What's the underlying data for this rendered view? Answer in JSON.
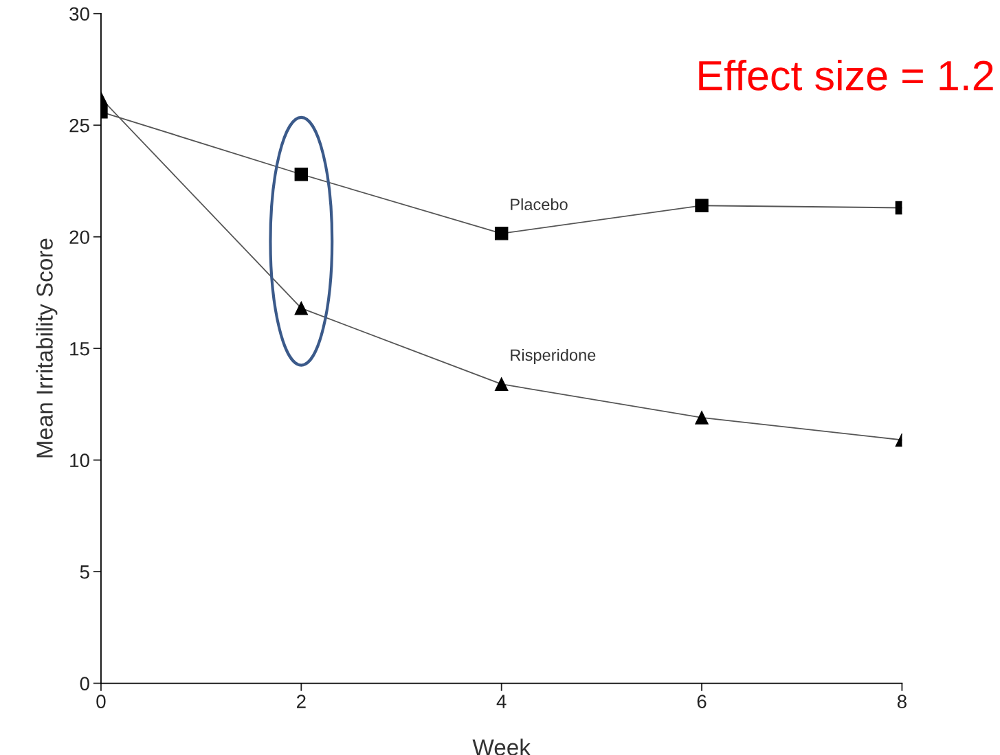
{
  "chart_data": {
    "type": "line",
    "xlabel": "Week",
    "ylabel": "Mean Irritability Score",
    "x": [
      0,
      2,
      4,
      6,
      8
    ],
    "series": [
      {
        "name": "Placebo",
        "color": "#000000",
        "marker": "square",
        "values": [
          25.6,
          22.8,
          20.15,
          21.4,
          21.3
        ]
      },
      {
        "name": "Risperidone",
        "color": "#000000",
        "marker": "triangle",
        "values": [
          26.2,
          16.8,
          13.4,
          11.9,
          10.9
        ]
      }
    ],
    "xlim": [
      0,
      8
    ],
    "xticks": [
      0,
      2,
      4,
      6,
      8
    ],
    "ylim": [
      0,
      30
    ],
    "yticks": [
      0,
      5,
      10,
      15,
      20,
      25,
      30
    ],
    "grid": false,
    "legend": false,
    "line_style": "solid",
    "annotations": [
      "Effect size = 1.2"
    ]
  }
}
